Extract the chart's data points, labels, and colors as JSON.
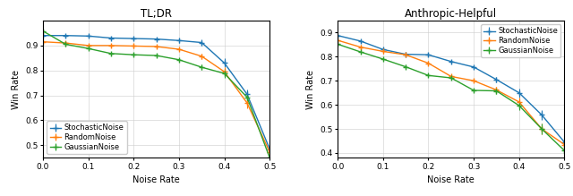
{
  "tldr": {
    "title": "TL;DR",
    "xlabel": "Noise Rate",
    "ylabel": "Win Rate",
    "xlim": [
      0.0,
      0.5
    ],
    "ylim": [
      0.45,
      1.0
    ],
    "yticks": [
      0.5,
      0.6,
      0.7,
      0.8,
      0.9
    ],
    "xticks": [
      0.0,
      0.1,
      0.2,
      0.3,
      0.4,
      0.5
    ],
    "stochastic": {
      "x": [
        0.0,
        0.05,
        0.1,
        0.15,
        0.2,
        0.25,
        0.3,
        0.35,
        0.4,
        0.45,
        0.5
      ],
      "y": [
        0.94,
        0.94,
        0.938,
        0.93,
        0.928,
        0.926,
        0.92,
        0.912,
        0.83,
        0.705,
        0.485
      ],
      "yerr": [
        0.008,
        0.007,
        0.007,
        0.007,
        0.007,
        0.007,
        0.008,
        0.012,
        0.018,
        0.018,
        0.018
      ]
    },
    "random": {
      "x": [
        0.0,
        0.05,
        0.1,
        0.15,
        0.2,
        0.25,
        0.3,
        0.35,
        0.4,
        0.45,
        0.5
      ],
      "y": [
        0.915,
        0.91,
        0.9,
        0.9,
        0.898,
        0.896,
        0.885,
        0.857,
        0.795,
        0.67,
        0.473
      ],
      "yerr": [
        0.008,
        0.008,
        0.008,
        0.008,
        0.008,
        0.008,
        0.008,
        0.012,
        0.018,
        0.022,
        0.018
      ]
    },
    "gaussian": {
      "x": [
        0.0,
        0.05,
        0.1,
        0.15,
        0.2,
        0.25,
        0.3,
        0.35,
        0.4,
        0.45,
        0.5
      ],
      "y": [
        0.958,
        0.905,
        0.888,
        0.868,
        0.863,
        0.86,
        0.843,
        0.813,
        0.788,
        0.693,
        0.45
      ],
      "yerr": [
        0.008,
        0.008,
        0.008,
        0.008,
        0.008,
        0.008,
        0.008,
        0.012,
        0.018,
        0.022,
        0.018
      ]
    },
    "legend_loc": "lower left"
  },
  "anthropic": {
    "title": "Anthropic-Helpful",
    "xlabel": "Noise Rate",
    "ylabel": "Win Rate",
    "xlim": [
      0.0,
      0.5
    ],
    "ylim": [
      0.38,
      0.95
    ],
    "yticks": [
      0.4,
      0.5,
      0.6,
      0.7,
      0.8,
      0.9
    ],
    "xticks": [
      0.0,
      0.1,
      0.2,
      0.3,
      0.4,
      0.5
    ],
    "stochastic": {
      "x": [
        0.0,
        0.05,
        0.1,
        0.15,
        0.2,
        0.25,
        0.3,
        0.35,
        0.4,
        0.45,
        0.5
      ],
      "y": [
        0.888,
        0.865,
        0.83,
        0.81,
        0.808,
        0.78,
        0.757,
        0.705,
        0.65,
        0.558,
        0.445
      ],
      "yerr": [
        0.008,
        0.008,
        0.008,
        0.008,
        0.008,
        0.008,
        0.008,
        0.012,
        0.018,
        0.022,
        0.018
      ]
    },
    "random": {
      "x": [
        0.0,
        0.05,
        0.1,
        0.15,
        0.2,
        0.25,
        0.3,
        0.35,
        0.4,
        0.45,
        0.5
      ],
      "y": [
        0.868,
        0.84,
        0.822,
        0.808,
        0.773,
        0.718,
        0.7,
        0.662,
        0.612,
        0.5,
        0.435
      ],
      "yerr": [
        0.008,
        0.008,
        0.008,
        0.008,
        0.008,
        0.008,
        0.008,
        0.012,
        0.018,
        0.022,
        0.018
      ]
    },
    "gaussian": {
      "x": [
        0.0,
        0.05,
        0.1,
        0.15,
        0.2,
        0.25,
        0.3,
        0.35,
        0.4,
        0.45,
        0.5
      ],
      "y": [
        0.852,
        0.82,
        0.79,
        0.758,
        0.722,
        0.712,
        0.66,
        0.658,
        0.597,
        0.5,
        0.41
      ],
      "yerr": [
        0.008,
        0.008,
        0.008,
        0.008,
        0.008,
        0.008,
        0.008,
        0.012,
        0.018,
        0.022,
        0.018
      ]
    },
    "legend_loc": "upper right"
  },
  "colors": {
    "stochastic": "#1f77b4",
    "random": "#ff7f0e",
    "gaussian": "#2ca02c"
  },
  "legend_labels": {
    "stochastic": "StochasticNoise",
    "random": "RandomNoise",
    "gaussian": "GaussianNoise"
  },
  "figsize": [
    6.4,
    2.19
  ],
  "dpi": 100
}
